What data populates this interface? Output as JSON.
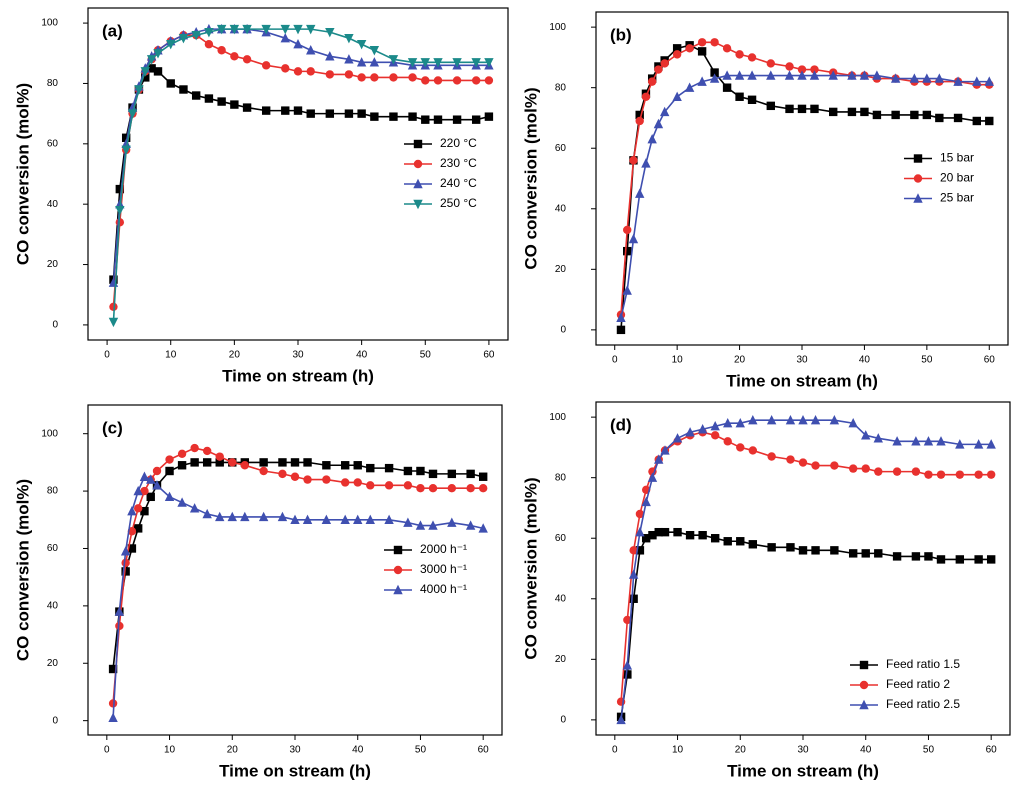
{
  "chart_data": [
    {
      "type": "line",
      "label": "(a)",
      "xlabel": "Time on stream (h)",
      "ylabel": "CO conversion (mol%)",
      "x": [
        1,
        2,
        3,
        4,
        5,
        6,
        7,
        8,
        10,
        12,
        14,
        16,
        18,
        20,
        22,
        25,
        28,
        30,
        32,
        35,
        38,
        40,
        42,
        45,
        48,
        50,
        52,
        55,
        58,
        60
      ],
      "xlim": [
        -3,
        63
      ],
      "xticks": [
        0,
        10,
        20,
        30,
        40,
        50,
        60
      ],
      "ylim": [
        -5,
        105
      ],
      "yticks": [
        0,
        20,
        40,
        60,
        80,
        100
      ],
      "legend": "center right",
      "series": [
        {
          "name": "220 °C",
          "color": "#000000",
          "marker": "square",
          "values": [
            15,
            45,
            62,
            72,
            78,
            82,
            85,
            84,
            80,
            78,
            76,
            75,
            74,
            73,
            72,
            71,
            71,
            71,
            70,
            70,
            70,
            70,
            69,
            69,
            69,
            68,
            68,
            68,
            68,
            69
          ]
        },
        {
          "name": "230 °C",
          "color": "#e8312e",
          "marker": "circle",
          "values": [
            6,
            34,
            58,
            70,
            78,
            84,
            88,
            91,
            94,
            96,
            96,
            93,
            91,
            89,
            88,
            86,
            85,
            84,
            84,
            83,
            83,
            82,
            82,
            82,
            82,
            81,
            81,
            81,
            81,
            81
          ]
        },
        {
          "name": "240 °C",
          "color": "#3f4fb0",
          "marker": "triangle-up",
          "values": [
            14,
            40,
            60,
            72,
            79,
            85,
            89,
            91,
            94,
            96,
            97,
            98,
            98,
            98,
            98,
            97,
            95,
            93,
            91,
            89,
            88,
            87,
            87,
            87,
            86,
            86,
            86,
            86,
            86,
            86
          ]
        },
        {
          "name": "250 °C",
          "color": "#1b8a8a",
          "marker": "triangle-down",
          "values": [
            1,
            38,
            58,
            70,
            78,
            84,
            88,
            90,
            93,
            95,
            96,
            97,
            98,
            98,
            98,
            98,
            98,
            98,
            98,
            97,
            95,
            93,
            91,
            88,
            87,
            87,
            87,
            87,
            87,
            87
          ]
        }
      ]
    },
    {
      "type": "line",
      "label": "(b)",
      "xlabel": "Time on stream (h)",
      "ylabel": "CO conversion (mol%)",
      "x": [
        1,
        2,
        3,
        4,
        5,
        6,
        7,
        8,
        10,
        12,
        14,
        16,
        18,
        20,
        22,
        25,
        28,
        30,
        32,
        35,
        38,
        40,
        42,
        45,
        48,
        50,
        52,
        55,
        58,
        60
      ],
      "xlim": [
        -3,
        63
      ],
      "xticks": [
        0,
        10,
        20,
        30,
        40,
        50,
        60
      ],
      "ylim": [
        -5,
        105
      ],
      "yticks": [
        0,
        20,
        40,
        60,
        80,
        100
      ],
      "legend": "center right",
      "series": [
        {
          "name": "15 bar",
          "color": "#000000",
          "marker": "square",
          "values": [
            0,
            26,
            56,
            71,
            78,
            83,
            87,
            89,
            93,
            94,
            92,
            85,
            80,
            77,
            76,
            74,
            73,
            73,
            73,
            72,
            72,
            72,
            71,
            71,
            71,
            71,
            70,
            70,
            69,
            69
          ]
        },
        {
          "name": "20 bar",
          "color": "#e8312e",
          "marker": "circle",
          "values": [
            5,
            33,
            56,
            69,
            77,
            82,
            86,
            88,
            91,
            93,
            95,
            95,
            93,
            91,
            90,
            88,
            87,
            86,
            86,
            85,
            84,
            84,
            83,
            83,
            82,
            82,
            82,
            82,
            81,
            81
          ]
        },
        {
          "name": "25 bar",
          "color": "#3f4fb0",
          "marker": "triangle-up",
          "values": [
            4,
            13,
            30,
            45,
            55,
            63,
            68,
            72,
            77,
            80,
            82,
            83,
            84,
            84,
            84,
            84,
            84,
            84,
            84,
            84,
            84,
            84,
            84,
            83,
            83,
            83,
            83,
            82,
            82,
            82
          ]
        }
      ]
    },
    {
      "type": "line",
      "label": "(c)",
      "xlabel": "Time on stream (h)",
      "ylabel": "CO conversion (mol%)",
      "x": [
        1,
        2,
        3,
        4,
        5,
        6,
        7,
        8,
        10,
        12,
        14,
        16,
        18,
        20,
        22,
        25,
        28,
        30,
        32,
        35,
        38,
        40,
        42,
        45,
        48,
        50,
        52,
        55,
        58,
        60
      ],
      "xlim": [
        -3,
        63
      ],
      "xticks": [
        0,
        10,
        20,
        30,
        40,
        50,
        60
      ],
      "ylim": [
        -5,
        110
      ],
      "yticks": [
        0,
        20,
        40,
        60,
        80,
        100
      ],
      "legend": "center right",
      "series": [
        {
          "name": "2000 h⁻¹",
          "color": "#000000",
          "marker": "square",
          "values": [
            18,
            38,
            52,
            60,
            67,
            73,
            78,
            82,
            87,
            89,
            90,
            90,
            90,
            90,
            90,
            90,
            90,
            90,
            90,
            89,
            89,
            89,
            88,
            88,
            87,
            87,
            86,
            86,
            86,
            85
          ]
        },
        {
          "name": "3000 h⁻¹",
          "color": "#e8312e",
          "marker": "circle",
          "values": [
            6,
            33,
            55,
            66,
            74,
            80,
            84,
            87,
            91,
            93,
            95,
            94,
            92,
            90,
            89,
            87,
            86,
            85,
            84,
            84,
            83,
            83,
            82,
            82,
            82,
            81,
            81,
            81,
            81,
            81
          ]
        },
        {
          "name": "4000 h⁻¹",
          "color": "#3f4fb0",
          "marker": "triangle-up",
          "values": [
            1,
            38,
            59,
            73,
            80,
            85,
            84,
            82,
            78,
            76,
            74,
            72,
            71,
            71,
            71,
            71,
            71,
            70,
            70,
            70,
            70,
            70,
            70,
            70,
            69,
            68,
            68,
            69,
            68,
            67
          ]
        }
      ]
    },
    {
      "type": "line",
      "label": "(d)",
      "xlabel": "Time on stream (h)",
      "ylabel": "CO conversion (mol%)",
      "x": [
        1,
        2,
        3,
        4,
        5,
        6,
        7,
        8,
        10,
        12,
        14,
        16,
        18,
        20,
        22,
        25,
        28,
        30,
        32,
        35,
        38,
        40,
        42,
        45,
        48,
        50,
        52,
        55,
        58,
        60
      ],
      "xlim": [
        -3,
        63
      ],
      "xticks": [
        0,
        10,
        20,
        30,
        40,
        50,
        60
      ],
      "ylim": [
        -5,
        105
      ],
      "yticks": [
        0,
        20,
        40,
        60,
        80,
        100
      ],
      "legend": "lower right",
      "series": [
        {
          "name": "Feed ratio 1.5",
          "color": "#000000",
          "marker": "square",
          "values": [
            1,
            15,
            40,
            56,
            60,
            61,
            62,
            62,
            62,
            61,
            61,
            60,
            59,
            59,
            58,
            57,
            57,
            56,
            56,
            56,
            55,
            55,
            55,
            54,
            54,
            54,
            53,
            53,
            53,
            53
          ]
        },
        {
          "name": "Feed ratio 2",
          "color": "#e8312e",
          "marker": "circle",
          "values": [
            6,
            33,
            56,
            68,
            76,
            82,
            86,
            89,
            92,
            94,
            95,
            94,
            92,
            90,
            89,
            87,
            86,
            85,
            84,
            84,
            83,
            83,
            82,
            82,
            82,
            81,
            81,
            81,
            81,
            81
          ]
        },
        {
          "name": "Feed ratio 2.5",
          "color": "#3f4fb0",
          "marker": "triangle-up",
          "values": [
            0,
            18,
            48,
            62,
            72,
            80,
            86,
            89,
            93,
            95,
            96,
            97,
            98,
            98,
            99,
            99,
            99,
            99,
            99,
            99,
            98,
            94,
            93,
            92,
            92,
            92,
            92,
            91,
            91,
            91
          ]
        }
      ]
    }
  ]
}
